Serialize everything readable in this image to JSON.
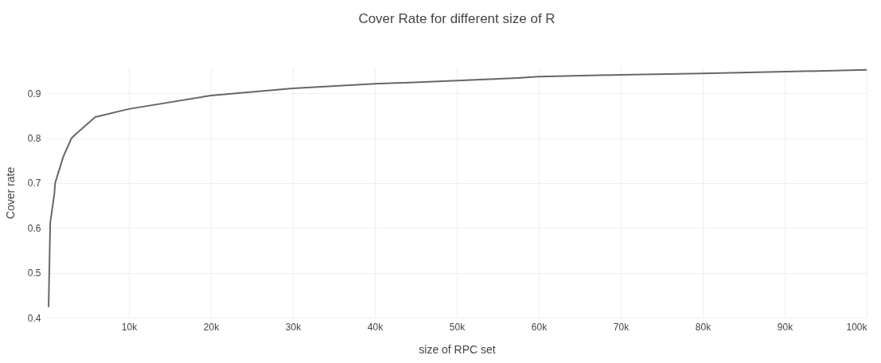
{
  "chart_data": {
    "type": "line",
    "title": "Cover Rate for different size of R",
    "xlabel": "size of RPC set",
    "ylabel": "Cover rate",
    "x": [
      200,
      400,
      900,
      1000,
      2000,
      3000,
      3700,
      5900,
      10000,
      20000,
      30000,
      40000,
      50000,
      57400,
      60000,
      70000,
      80000,
      90000,
      100000
    ],
    "series": [
      {
        "color": "#666666",
        "values": [
          0.425,
          0.611,
          0.676,
          0.7,
          0.759,
          0.8,
          0.812,
          0.847,
          0.865,
          0.895,
          0.911,
          0.921,
          0.928,
          0.934,
          0.937,
          0.941,
          0.944,
          0.948,
          0.952
        ]
      }
    ],
    "xlim": [
      0,
      100000
    ],
    "xticks": [
      {
        "value": 10000,
        "label": "10k"
      },
      {
        "value": 20000,
        "label": "20k"
      },
      {
        "value": 30000,
        "label": "30k"
      },
      {
        "value": 40000,
        "label": "40k"
      },
      {
        "value": 50000,
        "label": "50k"
      },
      {
        "value": 60000,
        "label": "60k"
      },
      {
        "value": 70000,
        "label": "70k"
      },
      {
        "value": 80000,
        "label": "80k"
      },
      {
        "value": 90000,
        "label": "90k"
      },
      {
        "value": 100000,
        "label": "100k"
      }
    ],
    "ylim": [
      0.4,
      0.957
    ],
    "yticks": [
      0.4,
      0.5,
      0.6,
      0.7,
      0.8,
      0.9
    ],
    "grid": true,
    "marker": "none",
    "line_style": "solid"
  }
}
